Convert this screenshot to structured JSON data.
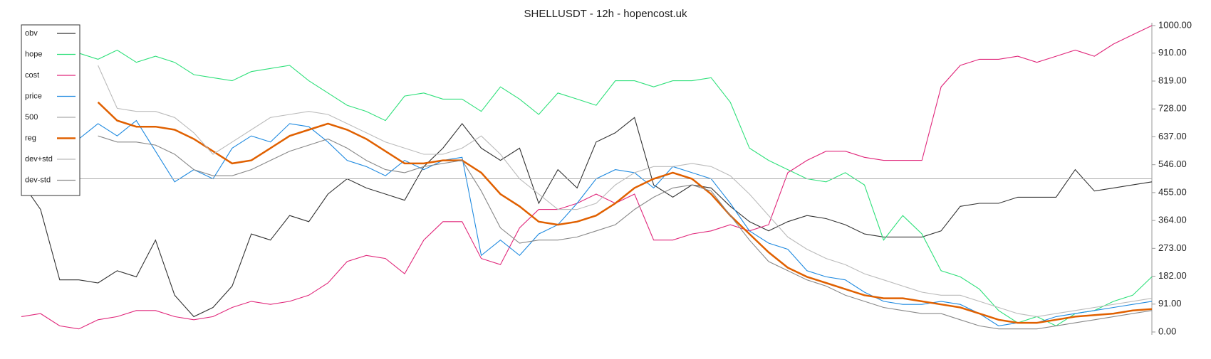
{
  "chart_data": {
    "type": "line",
    "title": "SHELLUSDT - 12h - hopencost.uk",
    "ylim": [
      0,
      1000
    ],
    "yticks": [
      {
        "value": 0,
        "label": "0.00"
      },
      {
        "value": 91,
        "label": "91.00"
      },
      {
        "value": 182,
        "label": "182.00"
      },
      {
        "value": 273,
        "label": "273.00"
      },
      {
        "value": 364,
        "label": "364.00"
      },
      {
        "value": 455,
        "label": "455.00"
      },
      {
        "value": 546,
        "label": "546.00"
      },
      {
        "value": 637,
        "label": "637.00"
      },
      {
        "value": 728,
        "label": "728.00"
      },
      {
        "value": 819,
        "label": "819.00"
      },
      {
        "value": 910,
        "label": "910.00"
      },
      {
        "value": 1000,
        "label": "1000.00"
      }
    ],
    "legend": "upper left",
    "series": [
      {
        "name": "obv",
        "color": "#333333",
        "values": [
          490,
          400,
          170,
          170,
          160,
          200,
          180,
          300,
          120,
          50,
          80,
          150,
          320,
          300,
          380,
          360,
          450,
          500,
          470,
          450,
          430,
          540,
          600,
          680,
          600,
          560,
          600,
          420,
          530,
          470,
          620,
          650,
          700,
          480,
          440,
          480,
          470,
          410,
          360,
          330,
          360,
          380,
          370,
          350,
          320,
          310,
          310,
          310,
          330,
          410,
          420,
          420,
          440,
          440,
          440,
          530,
          460,
          470,
          480,
          490
        ]
      },
      {
        "name": "hope",
        "color": "#2ee07a",
        "values": [
          null,
          null,
          null,
          910,
          890,
          920,
          880,
          900,
          880,
          840,
          830,
          820,
          850,
          860,
          870,
          820,
          780,
          740,
          720,
          690,
          770,
          780,
          760,
          760,
          720,
          800,
          760,
          710,
          780,
          760,
          740,
          820,
          820,
          800,
          820,
          820,
          830,
          750,
          600,
          560,
          530,
          500,
          490,
          520,
          480,
          300,
          380,
          320,
          200,
          180,
          140,
          70,
          30,
          50,
          20,
          60,
          70,
          100,
          120,
          180
        ]
      },
      {
        "name": "cost",
        "color": "#e0267a",
        "values": [
          50,
          60,
          20,
          10,
          40,
          50,
          70,
          70,
          50,
          40,
          50,
          80,
          100,
          90,
          100,
          120,
          160,
          230,
          250,
          240,
          190,
          300,
          360,
          360,
          240,
          220,
          340,
          400,
          400,
          420,
          450,
          420,
          450,
          300,
          300,
          320,
          330,
          350,
          330,
          350,
          520,
          560,
          590,
          590,
          570,
          560,
          560,
          560,
          800,
          870,
          890,
          890,
          900,
          880,
          900,
          920,
          900,
          940,
          970,
          1000
        ]
      },
      {
        "name": "price",
        "color": "#1f8ae0",
        "values": [
          null,
          null,
          null,
          630,
          680,
          640,
          690,
          590,
          490,
          530,
          500,
          600,
          640,
          620,
          680,
          670,
          620,
          560,
          540,
          510,
          560,
          530,
          560,
          570,
          250,
          300,
          250,
          320,
          350,
          420,
          500,
          530,
          520,
          470,
          540,
          520,
          500,
          420,
          330,
          290,
          270,
          200,
          180,
          170,
          130,
          100,
          90,
          90,
          100,
          90,
          60,
          20,
          30,
          30,
          50,
          60,
          70,
          80,
          90,
          100
        ]
      },
      {
        "name": "500",
        "color": "#aaaaaa",
        "values": [
          500,
          500,
          500,
          500,
          500,
          500,
          500,
          500,
          500,
          500,
          500,
          500,
          500,
          500,
          500,
          500,
          500,
          500,
          500,
          500,
          500,
          500,
          500,
          500,
          500,
          500,
          500,
          500,
          500,
          500,
          500,
          500,
          500,
          500,
          500,
          500,
          500,
          500,
          500,
          500,
          500,
          500,
          500,
          500,
          500,
          500,
          500,
          500,
          500,
          500,
          500,
          500,
          500,
          500,
          500,
          500,
          500,
          500,
          500,
          500
        ]
      },
      {
        "name": "reg",
        "color": "#e06000",
        "linewidth": 2.5,
        "values": [
          null,
          null,
          null,
          null,
          750,
          690,
          670,
          670,
          660,
          630,
          590,
          550,
          560,
          600,
          640,
          660,
          680,
          660,
          630,
          590,
          550,
          550,
          560,
          560,
          520,
          450,
          410,
          360,
          350,
          360,
          380,
          420,
          470,
          500,
          520,
          500,
          450,
          380,
          320,
          260,
          210,
          180,
          160,
          140,
          120,
          110,
          110,
          100,
          90,
          80,
          60,
          40,
          30,
          30,
          40,
          50,
          55,
          60,
          70,
          75
        ]
      },
      {
        "name": "dev+std",
        "color": "#bbbbbb",
        "values": [
          null,
          null,
          null,
          null,
          870,
          730,
          720,
          720,
          700,
          650,
          580,
          620,
          660,
          700,
          710,
          720,
          710,
          680,
          650,
          620,
          600,
          580,
          580,
          600,
          640,
          580,
          500,
          450,
          400,
          400,
          420,
          480,
          520,
          540,
          540,
          550,
          540,
          510,
          450,
          380,
          310,
          270,
          240,
          220,
          190,
          170,
          150,
          130,
          120,
          120,
          100,
          80,
          60,
          50,
          60,
          70,
          80,
          90,
          100,
          110
        ]
      },
      {
        "name": "dev-std",
        "color": "#888888",
        "values": [
          null,
          null,
          null,
          null,
          640,
          620,
          620,
          610,
          580,
          530,
          510,
          510,
          530,
          560,
          590,
          610,
          630,
          600,
          560,
          530,
          520,
          540,
          550,
          560,
          460,
          340,
          290,
          300,
          300,
          310,
          330,
          350,
          400,
          440,
          470,
          480,
          460,
          380,
          300,
          230,
          200,
          170,
          150,
          120,
          100,
          80,
          70,
          60,
          60,
          40,
          20,
          10,
          10,
          10,
          20,
          30,
          40,
          50,
          60,
          70
        ]
      }
    ]
  }
}
